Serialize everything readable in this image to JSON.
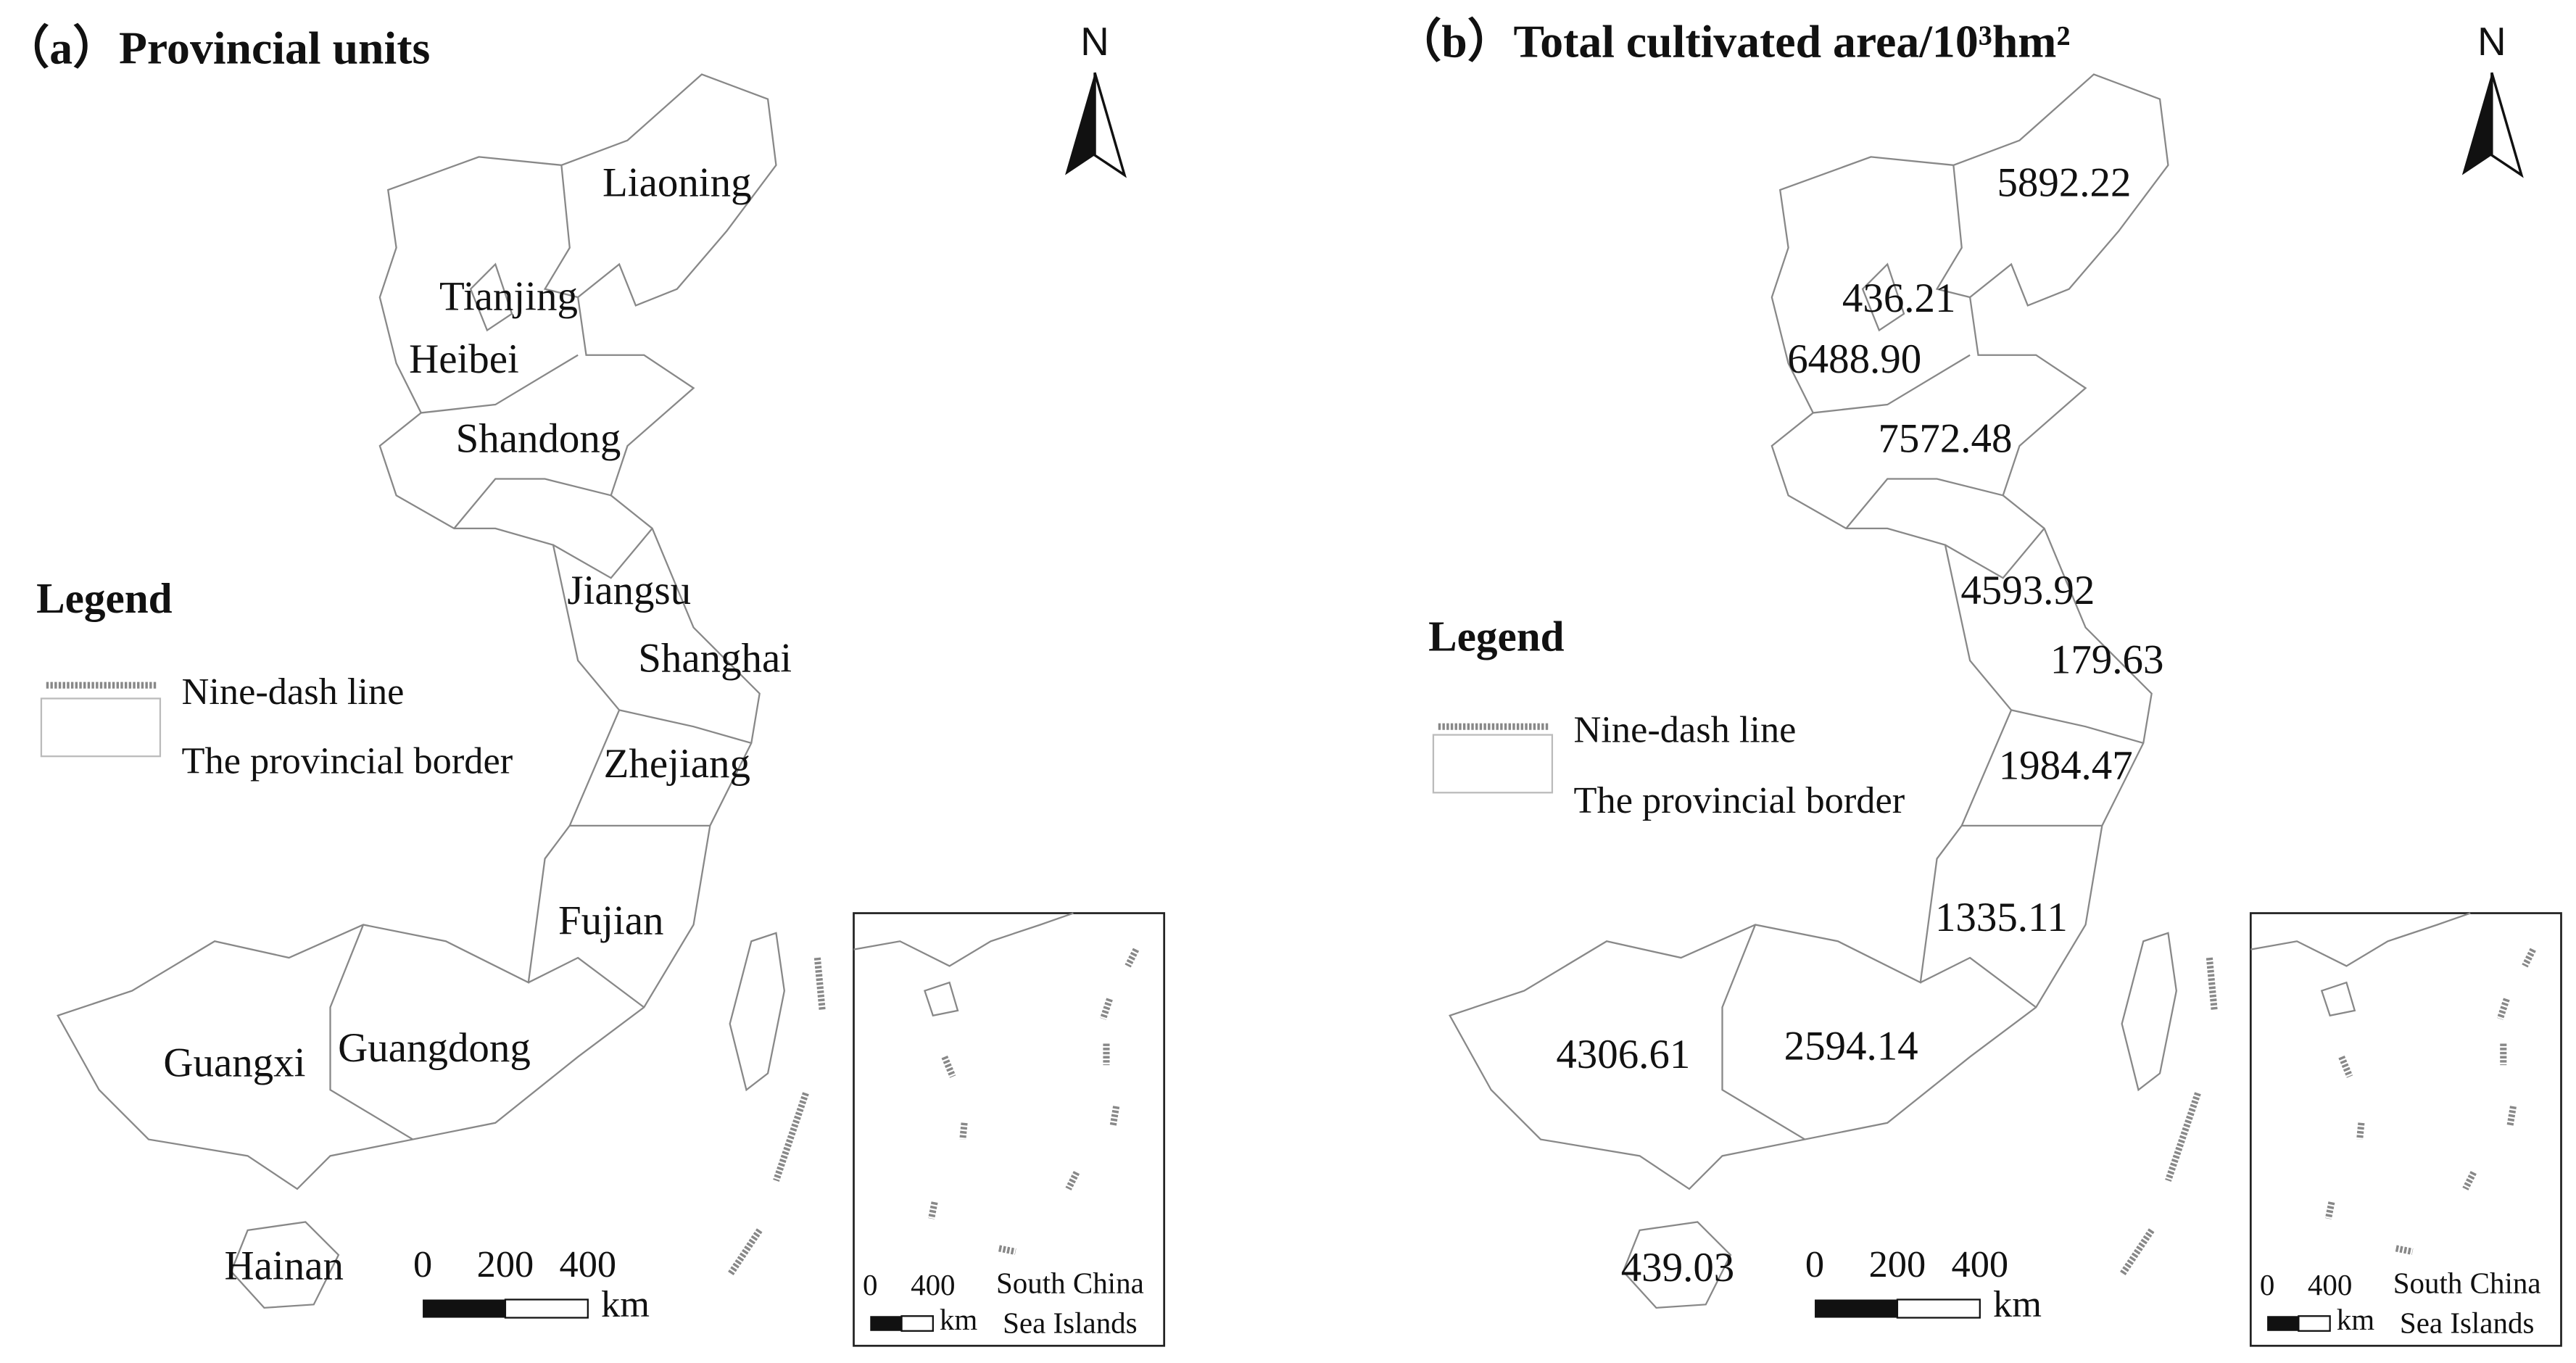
{
  "panels": [
    {
      "title": "（a）Provincial units",
      "labels": [
        "Liaoning",
        "Tianjing",
        "Heibei",
        "Shandong",
        "Jiangsu",
        "Shanghai",
        "Zhejiang",
        "Fujian",
        "Guangxi",
        "Guangdong",
        "Hainan"
      ],
      "legend": {
        "title": "Legend",
        "items": [
          "Nine-dash line",
          "The provincial border"
        ]
      },
      "north": "N",
      "scale": {
        "ticks": [
          "0",
          "200",
          "400"
        ],
        "unit": "km"
      },
      "inset": {
        "ticks": [
          "0",
          "400"
        ],
        "unit": "km",
        "caption": [
          "South China",
          "Sea Islands"
        ]
      }
    },
    {
      "title": "（b）Total cultivated area/10³hm²",
      "labels": [
        "5892.22",
        "436.21",
        "6488.90",
        "7572.48",
        "4593.92",
        "179.63",
        "1984.47",
        "1335.11",
        "4306.61",
        "2594.14",
        "439.03"
      ],
      "legend": {
        "title": "Legend",
        "items": [
          "Nine-dash line",
          "The provincial border"
        ]
      },
      "north": "N",
      "scale": {
        "ticks": [
          "0",
          "200",
          "400"
        ],
        "unit": "km"
      },
      "inset": {
        "ticks": [
          "0",
          "400"
        ],
        "unit": "km",
        "caption": [
          "South China",
          "Sea Islands"
        ]
      }
    }
  ]
}
